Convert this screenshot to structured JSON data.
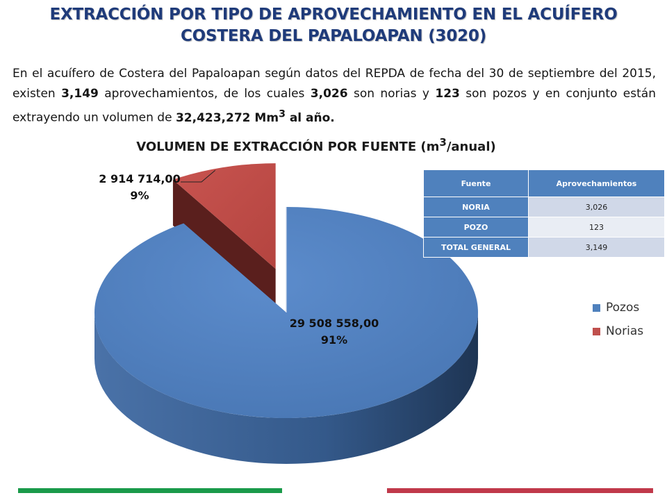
{
  "header": {
    "title_line1": "EXTRACCIÓN POR TIPO DE APROVECHAMIENTO EN EL ACUÍFERO",
    "title_line2": "COSTERA DEL PAPALOAPAN (3020)"
  },
  "intro": {
    "part1": "En el acuífero de Costera del Papaloapan según datos del REPDA de fecha del 30 de septiembre del 2015, existen ",
    "total_aprov": "3,149",
    "part2": " aprovechamientos, de los cuales ",
    "norias": "3,026",
    "part3": " son norias y ",
    "pozos": "123",
    "part4": " son pozos y en conjunto están extrayendo un volumen de ",
    "volumen": "32,423,272 Mm",
    "volumen_sup": "3",
    "volumen_suffix": " al año."
  },
  "chart_data": {
    "type": "pie",
    "title": "VOLUMEN DE EXTRACCIÓN POR FUENTE (m",
    "title_sup": "3",
    "title_suffix": "/anual)",
    "slices": [
      {
        "name": "Pozos",
        "value": 29508558.0,
        "value_label": "29 508 558,00",
        "percent_label": "91%",
        "color": "#4f81bd",
        "exploded": false
      },
      {
        "name": "Norias",
        "value": 2914714.0,
        "value_label": "2 914 714,00",
        "percent_label": "9%",
        "color": "#c0504d",
        "exploded": true
      }
    ],
    "legend_position": "right"
  },
  "table": {
    "headers": [
      "Fuente",
      "Aprovechamientos"
    ],
    "rows": [
      {
        "fuente": "NORIA",
        "aprovechamientos": "3,026"
      },
      {
        "fuente": "POZO",
        "aprovechamientos": "123"
      },
      {
        "fuente": "TOTAL GENERAL",
        "aprovechamientos": "3,149"
      }
    ]
  },
  "legend": {
    "items": [
      {
        "label": "Pozos",
        "color": "#4f81bd"
      },
      {
        "label": "Norias",
        "color": "#c0504d"
      }
    ]
  },
  "footer": {
    "green": "#1a9a4a",
    "red": "#c0394a"
  }
}
